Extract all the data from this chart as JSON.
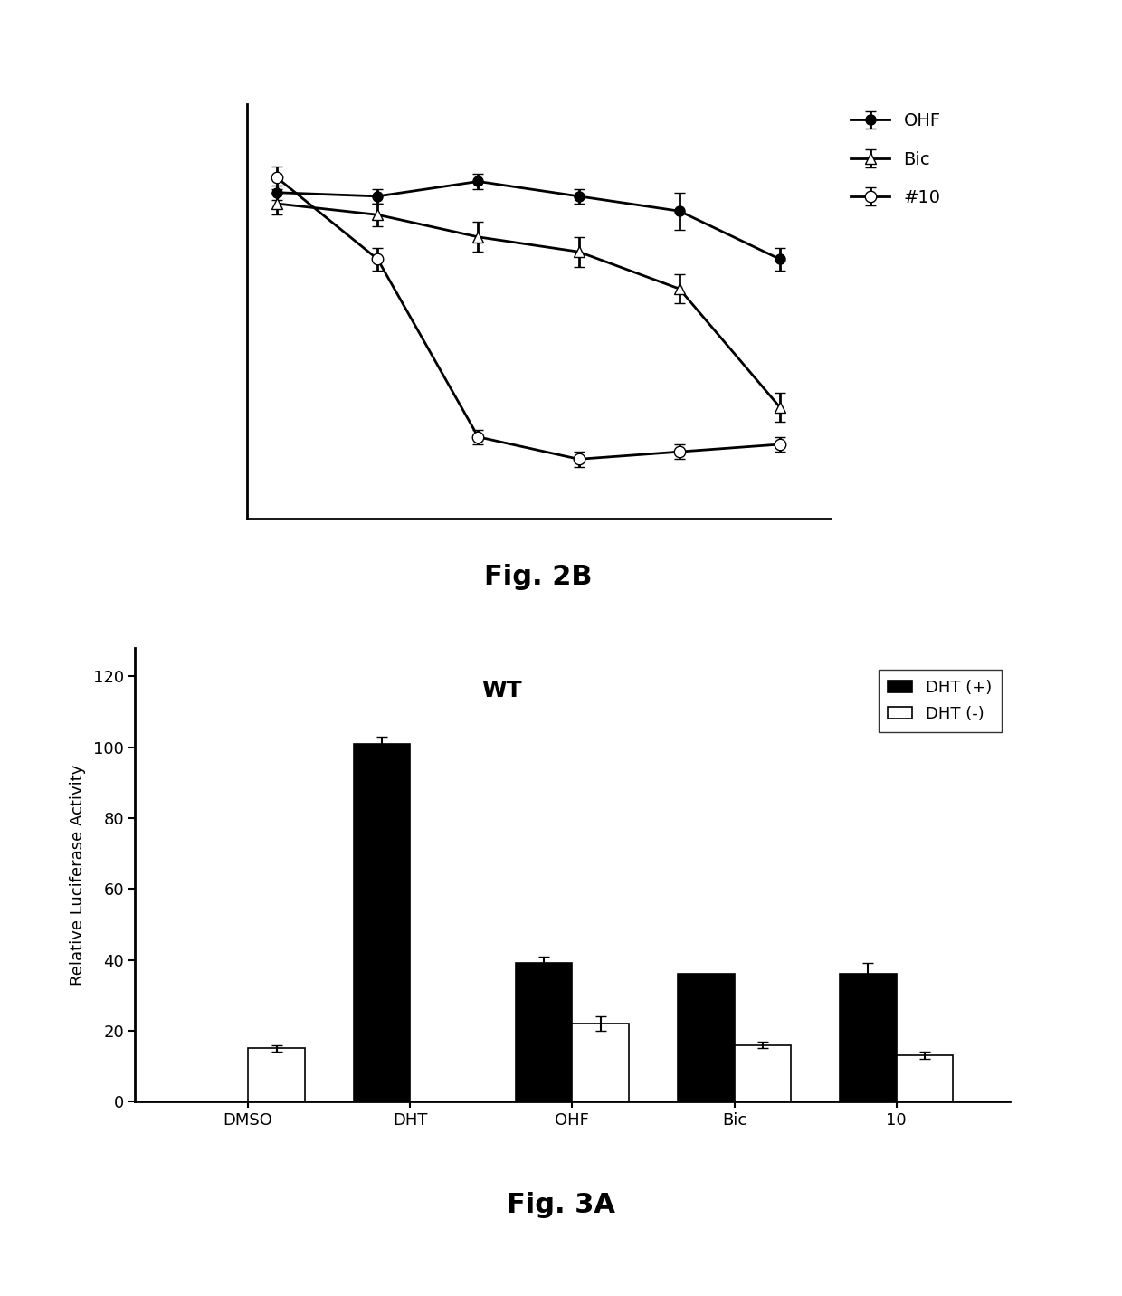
{
  "fig2b": {
    "x_points": [
      0,
      1,
      2,
      3,
      4,
      5
    ],
    "OHF_y": [
      88,
      87,
      91,
      87,
      83,
      70
    ],
    "OHF_err": [
      2,
      2,
      2,
      2,
      5,
      3
    ],
    "Bic_y": [
      85,
      82,
      76,
      72,
      62,
      30
    ],
    "Bic_err": [
      3,
      3,
      4,
      4,
      4,
      4
    ],
    "num10_y": [
      92,
      70,
      22,
      16,
      18,
      20
    ],
    "num10_err": [
      3,
      3,
      2,
      2,
      2,
      2
    ],
    "fig_label": "Fig. 2B",
    "fig_label_fontsize": 22,
    "legend_labels": [
      "OHF",
      "Bic",
      "#10"
    ],
    "legend_fontsize": 14
  },
  "fig3a": {
    "categories": [
      "DMSO",
      "DHT",
      "OHF",
      "Bic",
      "10"
    ],
    "dht_plus": [
      0,
      101,
      39,
      36,
      36
    ],
    "dht_plus_err": [
      0,
      2,
      2,
      0,
      3
    ],
    "dht_minus": [
      15,
      0,
      22,
      16,
      13
    ],
    "dht_minus_err": [
      1,
      0,
      2,
      1,
      1
    ],
    "ylabel": "Relative Luciferase Activity",
    "ylabel_fontsize": 13,
    "yticks": [
      0,
      20,
      40,
      60,
      80,
      100,
      120
    ],
    "ylim": [
      0,
      128
    ],
    "wt_label": "WT",
    "wt_fontsize": 18,
    "legend_labels": [
      "DHT (+)",
      "DHT (-)"
    ],
    "legend_fontsize": 13,
    "fig_label": "Fig. 3A",
    "fig_label_fontsize": 22,
    "bar_width": 0.35,
    "tick_fontsize": 13,
    "xlabel_fontsize": 13
  },
  "bg_color": "#ffffff",
  "line_color": "#000000"
}
